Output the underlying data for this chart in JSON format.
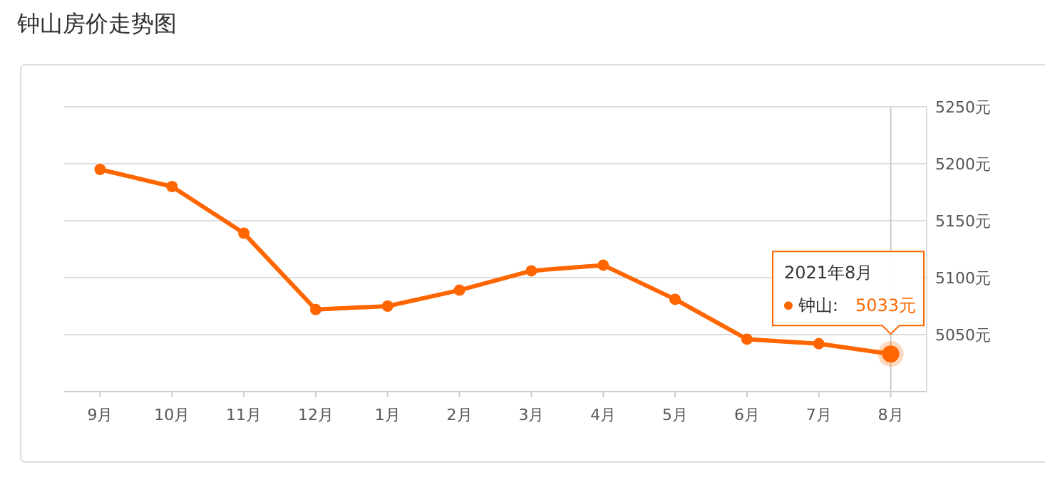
{
  "chart_data": {
    "type": "line",
    "title": "钟山房价走势图",
    "categories": [
      "9月",
      "10月",
      "11月",
      "12月",
      "1月",
      "2月",
      "3月",
      "4月",
      "5月",
      "6月",
      "7月",
      "8月"
    ],
    "series": [
      {
        "name": "钟山:",
        "color": "#ff6600",
        "values": [
          5195,
          5180,
          5139,
          5072,
          5075,
          5089,
          5106,
          5111,
          5081,
          5046,
          5042,
          5033
        ],
        "value_labels": [
          null,
          null,
          null,
          null,
          null,
          null,
          null,
          null,
          null,
          null,
          null,
          "5033元"
        ]
      }
    ],
    "ylim": [
      5000,
      5250
    ],
    "yticks": [
      {
        "value": 5000,
        "label": null
      },
      {
        "value": 5050,
        "label": "5050元"
      },
      {
        "value": 5100,
        "label": "5100元"
      },
      {
        "value": 5150,
        "label": "5150元"
      },
      {
        "value": 5200,
        "label": "5200元"
      },
      {
        "value": 5250,
        "label": "5250元"
      }
    ],
    "ref_lines": [
      {
        "axis": "x",
        "value": "8月",
        "color": "#cccccc"
      }
    ],
    "annotations": [
      "2021年8月"
    ],
    "grid": "y",
    "legend": "right",
    "marker": "circle",
    "line_style": "solid"
  }
}
